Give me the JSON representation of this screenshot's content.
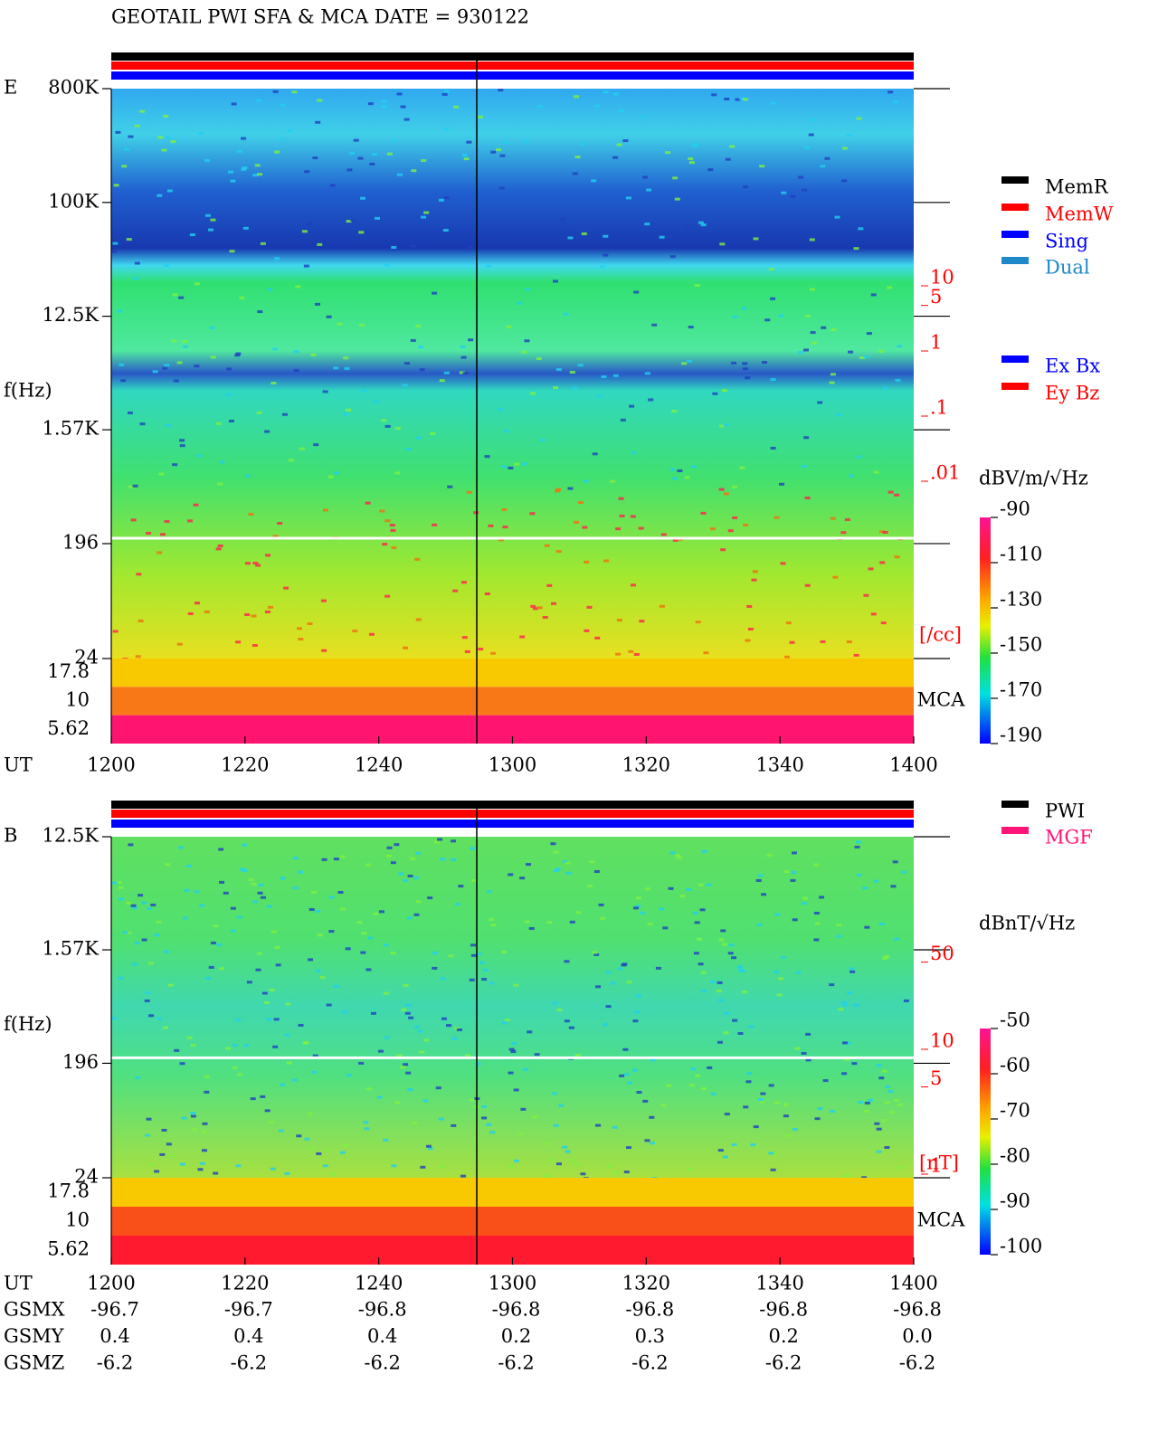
{
  "title": "GEOTAIL  PWI SFA & MCA   DATE = 930122",
  "chart_data": [
    {
      "type": "spectrogram",
      "panel": "E",
      "y_label": "f(Hz)",
      "x_label": "UT",
      "ylim": [
        24,
        800000
      ],
      "yticks": [
        {
          "value": 800000,
          "label": "800K"
        },
        {
          "value": 100000,
          "label": "100K"
        },
        {
          "value": 12500,
          "label": "12.5K"
        },
        {
          "value": 1570,
          "label": "1.57K"
        },
        196,
        24
      ],
      "mca_ticks": [
        17.8,
        10,
        5.62
      ],
      "mca_label": "MCA",
      "categories": [
        "1200",
        "1220",
        "1240",
        "1300",
        "1320",
        "1340",
        "1400"
      ],
      "density_ticks": [
        10,
        5,
        1,
        {
          "value": 0.1,
          "label": ".1"
        },
        {
          "value": 0.01,
          "label": ".01"
        }
      ],
      "density_unit": "[/cc]",
      "legend": [
        {
          "name": "MemR",
          "color": "#000000"
        },
        {
          "name": "MemW",
          "color": "#ff0000"
        },
        {
          "name": "Sing",
          "color": "#0000ff"
        },
        {
          "name": "Dual",
          "color": "#1e88c8"
        }
      ],
      "legend2": [
        {
          "name": "Ex Bx",
          "color": "#0000ff"
        },
        {
          "name": "Ey Bz",
          "color": "#ff0000"
        }
      ],
      "colorbar_label": "dBV/m/√Hz",
      "clim": [
        -190,
        -90
      ],
      "cticks": [
        -90,
        -110,
        -130,
        -150,
        -170,
        -190
      ]
    },
    {
      "type": "spectrogram",
      "panel": "B",
      "y_label": "f(Hz)",
      "x_label": "UT",
      "ylim": [
        24,
        12500
      ],
      "yticks": [
        {
          "value": 12500,
          "label": "12.5K"
        },
        {
          "value": 1570,
          "label": "1.57K"
        },
        196,
        24
      ],
      "mca_ticks": [
        17.8,
        10,
        5.62
      ],
      "mca_label": "MCA",
      "categories": [
        "1200",
        "1220",
        "1240",
        "1300",
        "1320",
        "1340",
        "1400"
      ],
      "density_ticks": [
        50,
        10,
        5,
        1
      ],
      "density_unit": "[nT]",
      "legend": [
        {
          "name": "PWI",
          "color": "#000000"
        },
        {
          "name": "MGF",
          "color": "#ff1478"
        }
      ],
      "colorbar_label": "dBnT/√Hz",
      "clim": [
        -100,
        -50
      ],
      "cticks": [
        -50,
        -60,
        -70,
        -80,
        -90,
        -100
      ]
    }
  ],
  "orbit": {
    "rows": [
      {
        "label": "GSMX",
        "values": [
          "-96.7",
          "-96.7",
          "-96.8",
          "-96.8",
          "-96.8",
          "-96.8",
          "-96.8"
        ]
      },
      {
        "label": "GSMY",
        "values": [
          "0.4",
          "0.4",
          "0.4",
          "0.2",
          "0.3",
          "0.2",
          "0.0"
        ]
      },
      {
        "label": "GSMZ",
        "values": [
          "-6.2",
          "-6.2",
          "-6.2",
          "-6.2",
          "-6.2",
          "-6.2",
          "-6.2"
        ]
      }
    ]
  }
}
